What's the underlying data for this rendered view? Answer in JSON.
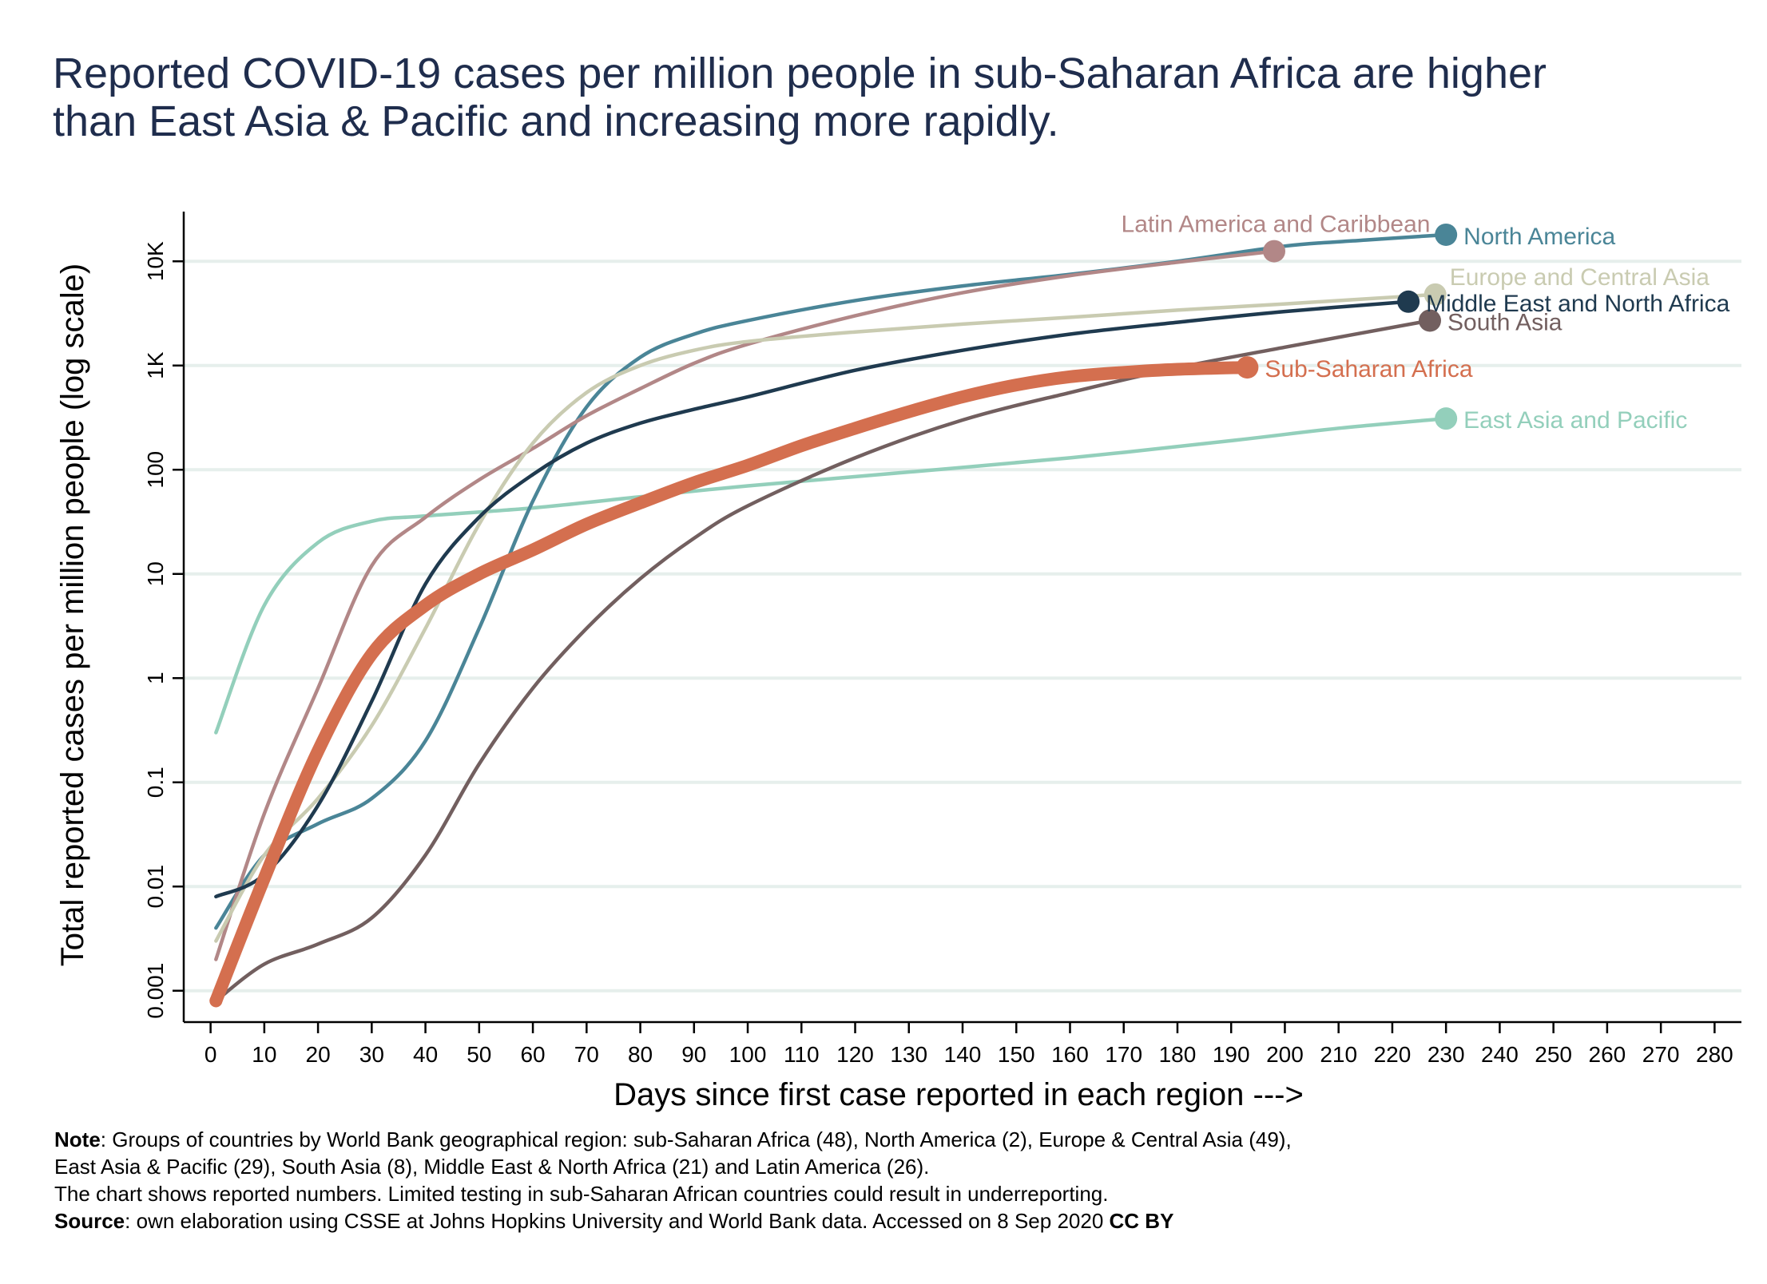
{
  "title_lines": [
    "Reported COVID-19 cases per million people in sub-Saharan Africa are higher",
    "than East Asia & Pacific and increasing more rapidly."
  ],
  "notes": {
    "note_label": "Note",
    "note_line1": ": Groups of countries by World Bank geographical region: sub-Saharan Africa (48), North America (2), Europe & Central Asia (49),",
    "note_line2": "East Asia & Pacific (29), South Asia (8), Middle East & North Africa (21) and Latin America (26).",
    "note_line3": "The chart shows reported numbers. Limited testing in sub-Saharan African countries could result in underreporting.",
    "source_label": "Source",
    "source_text": ": own elaboration using CSSE at Johns Hopkins University and World Bank data.  Accessed on  8 Sep 2020 ",
    "license": "CC BY"
  },
  "chart_data": {
    "type": "line",
    "xlabel": "Days since first case reported in each region --->",
    "ylabel": "Total reported cases per million people (log scale)",
    "xlim": [
      -5,
      285
    ],
    "xticks": [
      0,
      10,
      20,
      30,
      40,
      50,
      60,
      70,
      80,
      90,
      100,
      110,
      120,
      130,
      140,
      150,
      160,
      170,
      180,
      190,
      200,
      210,
      220,
      230,
      240,
      250,
      260,
      270,
      280
    ],
    "ylim": [
      0.0005,
      30000
    ],
    "yscale": "log",
    "yticks": [
      {
        "value": 0.001,
        "label": "0.001"
      },
      {
        "value": 0.01,
        "label": "0.01"
      },
      {
        "value": 0.1,
        "label": "0.1"
      },
      {
        "value": 1,
        "label": "1"
      },
      {
        "value": 10,
        "label": "10"
      },
      {
        "value": 100,
        "label": "100"
      },
      {
        "value": 1000,
        "label": "1K"
      },
      {
        "value": 10000,
        "label": "10K"
      }
    ],
    "grid": true,
    "series": [
      {
        "name": "East Asia and Pacific",
        "color": "#93cfbb",
        "highlight": false,
        "label_anchor": "end-right",
        "x": [
          1,
          10,
          20,
          30,
          40,
          60,
          80,
          100,
          130,
          160,
          190,
          210,
          230
        ],
        "y": [
          0.3,
          5,
          20,
          32,
          36,
          43,
          55,
          70,
          95,
          130,
          190,
          250,
          310
        ]
      },
      {
        "name": "North America",
        "color": "#4a8597",
        "highlight": false,
        "label_anchor": "end-right",
        "x": [
          1,
          10,
          20,
          30,
          40,
          50,
          60,
          70,
          80,
          90,
          100,
          120,
          140,
          160,
          180,
          200,
          215,
          230
        ],
        "y": [
          0.004,
          0.02,
          0.04,
          0.07,
          0.25,
          3,
          50,
          400,
          1200,
          2000,
          2700,
          4200,
          5800,
          7500,
          10000,
          14000,
          16000,
          18000
        ]
      },
      {
        "name": "Latin America and Caribbean",
        "color": "#b28787",
        "highlight": false,
        "label_anchor": "end-above",
        "x": [
          1,
          10,
          20,
          30,
          40,
          50,
          60,
          70,
          80,
          90,
          100,
          120,
          140,
          160,
          180,
          198
        ],
        "y": [
          0.002,
          0.05,
          0.8,
          12,
          35,
          80,
          160,
          330,
          600,
          1050,
          1600,
          3000,
          5000,
          7300,
          9800,
          12500
        ]
      },
      {
        "name": "Europe and Central Asia",
        "color": "#c9cbb1",
        "highlight": false,
        "label_anchor": "end-above-right",
        "x": [
          1,
          10,
          20,
          30,
          40,
          50,
          60,
          70,
          80,
          90,
          100,
          120,
          140,
          160,
          180,
          200,
          228
        ],
        "y": [
          0.003,
          0.02,
          0.07,
          0.35,
          3,
          30,
          180,
          550,
          1000,
          1400,
          1700,
          2100,
          2500,
          2900,
          3400,
          3900,
          4800
        ]
      },
      {
        "name": "Middle East and North Africa",
        "color": "#1f3a4f",
        "highlight": false,
        "label_anchor": "end-right",
        "x": [
          1,
          10,
          20,
          30,
          40,
          50,
          60,
          70,
          80,
          90,
          100,
          120,
          140,
          160,
          180,
          200,
          223
        ],
        "y": [
          0.008,
          0.013,
          0.06,
          0.6,
          8,
          35,
          90,
          180,
          280,
          380,
          500,
          900,
          1400,
          2000,
          2600,
          3300,
          4100
        ]
      },
      {
        "name": "South Asia",
        "color": "#725f5f",
        "highlight": false,
        "label_anchor": "end-right",
        "x": [
          1,
          10,
          20,
          30,
          40,
          50,
          60,
          70,
          80,
          90,
          100,
          120,
          140,
          160,
          180,
          200,
          227
        ],
        "y": [
          0.0008,
          0.0018,
          0.0028,
          0.005,
          0.02,
          0.15,
          0.8,
          3,
          9,
          22,
          45,
          130,
          300,
          550,
          950,
          1500,
          2700
        ]
      },
      {
        "name": "Sub-Saharan Africa",
        "color": "#d46f4f",
        "highlight": true,
        "label_anchor": "end-right",
        "x": [
          1,
          10,
          20,
          30,
          40,
          50,
          60,
          70,
          80,
          90,
          100,
          110,
          120,
          130,
          140,
          150,
          160,
          170,
          180,
          193
        ],
        "y": [
          0.0008,
          0.012,
          0.2,
          1.7,
          5,
          10,
          17,
          30,
          48,
          75,
          110,
          170,
          250,
          360,
          500,
          650,
          780,
          860,
          920,
          960
        ]
      }
    ]
  }
}
